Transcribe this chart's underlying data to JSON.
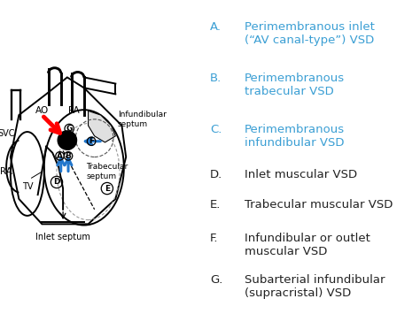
{
  "bg_color": "#ffffff",
  "legend_items": [
    {
      "label": "A.",
      "text": "Perimembranous inlet\n(“AV canal-type”) VSD",
      "color": "#3b9fd4",
      "bold": true
    },
    {
      "label": "B.",
      "text": "Perimembranous\ntrabecular VSD",
      "color": "#3b9fd4",
      "bold": true
    },
    {
      "label": "C.",
      "text": "Perimembranous\ninfundibular VSD",
      "color": "#3b9fd4",
      "bold": true
    },
    {
      "label": "D.",
      "text": "Inlet muscular VSD",
      "color": "#222222",
      "bold": false
    },
    {
      "label": "E.",
      "text": "Trabecular muscular VSD",
      "color": "#222222",
      "bold": false
    },
    {
      "label": "F.",
      "text": "Infundibular or outlet\nmuscular VSD",
      "color": "#222222",
      "bold": false
    },
    {
      "label": "G.",
      "text": "Subarterial infundibular\n(supracristal) VSD",
      "color": "#222222",
      "bold": false
    }
  ],
  "figsize": [
    4.74,
    3.55
  ],
  "dpi": 100
}
